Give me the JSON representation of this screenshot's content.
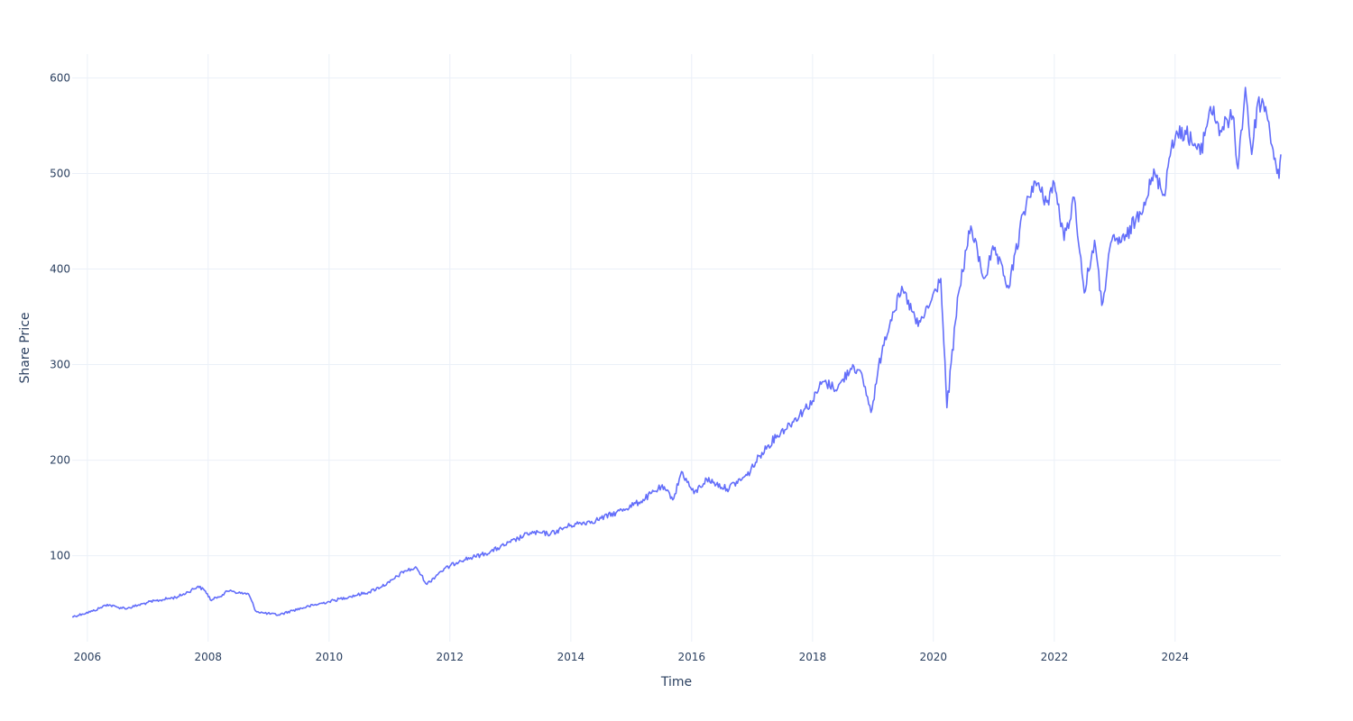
{
  "chart_data": {
    "type": "line",
    "xlabel": "Time",
    "ylabel": "Share Price",
    "x_ticks": [
      "2006",
      "2008",
      "2010",
      "2012",
      "2014",
      "2016",
      "2018",
      "2020",
      "2022",
      "2024"
    ],
    "y_ticks": [
      100,
      200,
      300,
      400,
      500,
      600
    ],
    "xlim": [
      "2005-10-01",
      "2025-10-01"
    ],
    "ylim": [
      10,
      625
    ],
    "grid": true,
    "line_color": "#636efa",
    "series": [
      {
        "values": [
          [
            "2005-10-01",
            36
          ],
          [
            "2005-12-01",
            39
          ],
          [
            "2006-02-01",
            42
          ],
          [
            "2006-03-15",
            45
          ],
          [
            "2006-05-01",
            49
          ],
          [
            "2006-07-01",
            46
          ],
          [
            "2006-09-01",
            45
          ],
          [
            "2006-11-01",
            48
          ],
          [
            "2007-01-01",
            51
          ],
          [
            "2007-04-01",
            54
          ],
          [
            "2007-07-01",
            57
          ],
          [
            "2007-09-01",
            62
          ],
          [
            "2007-11-01",
            68
          ],
          [
            "2007-12-15",
            63
          ],
          [
            "2008-01-20",
            53
          ],
          [
            "2008-03-01",
            57
          ],
          [
            "2008-05-15",
            64
          ],
          [
            "2008-07-01",
            61
          ],
          [
            "2008-09-01",
            60
          ],
          [
            "2008-10-15",
            42
          ],
          [
            "2008-12-01",
            40
          ],
          [
            "2009-03-01",
            38
          ],
          [
            "2009-06-01",
            43
          ],
          [
            "2009-09-01",
            47
          ],
          [
            "2010-01-01",
            52
          ],
          [
            "2010-05-01",
            57
          ],
          [
            "2010-09-01",
            62
          ],
          [
            "2011-01-01",
            72
          ],
          [
            "2011-04-01",
            84
          ],
          [
            "2011-06-15",
            87
          ],
          [
            "2011-08-15",
            70
          ],
          [
            "2011-11-01",
            83
          ],
          [
            "2012-03-01",
            95
          ],
          [
            "2012-06-01",
            99
          ],
          [
            "2012-09-01",
            104
          ],
          [
            "2013-01-01",
            114
          ],
          [
            "2013-05-01",
            124
          ],
          [
            "2013-09-01",
            123
          ],
          [
            "2014-01-01",
            132
          ],
          [
            "2014-06-01",
            137
          ],
          [
            "2014-10-01",
            145
          ],
          [
            "2015-03-01",
            157
          ],
          [
            "2015-07-01",
            172
          ],
          [
            "2015-09-15",
            160
          ],
          [
            "2015-11-01",
            188
          ],
          [
            "2016-01-15",
            165
          ],
          [
            "2016-04-01",
            180
          ],
          [
            "2016-08-01",
            170
          ],
          [
            "2016-12-01",
            184
          ],
          [
            "2017-03-01",
            208
          ],
          [
            "2017-06-01",
            226
          ],
          [
            "2017-09-01",
            240
          ],
          [
            "2018-01-01",
            262
          ],
          [
            "2018-03-01",
            282
          ],
          [
            "2018-06-01",
            275
          ],
          [
            "2018-09-01",
            300
          ],
          [
            "2018-11-01",
            285
          ],
          [
            "2018-12-20",
            250
          ],
          [
            "2019-03-01",
            320
          ],
          [
            "2019-05-01",
            355
          ],
          [
            "2019-07-01",
            378
          ],
          [
            "2019-10-01",
            340
          ],
          [
            "2019-12-15",
            365
          ],
          [
            "2020-02-15",
            390
          ],
          [
            "2020-03-23",
            255
          ],
          [
            "2020-06-01",
            375
          ],
          [
            "2020-08-15",
            445
          ],
          [
            "2020-11-01",
            390
          ],
          [
            "2021-01-01",
            420
          ],
          [
            "2021-04-01",
            380
          ],
          [
            "2021-07-01",
            460
          ],
          [
            "2021-09-01",
            492
          ],
          [
            "2021-11-15",
            470
          ],
          [
            "2022-01-01",
            490
          ],
          [
            "2022-03-01",
            430
          ],
          [
            "2022-05-01",
            475
          ],
          [
            "2022-07-01",
            375
          ],
          [
            "2022-09-01",
            430
          ],
          [
            "2022-10-15",
            362
          ],
          [
            "2022-12-15",
            430
          ],
          [
            "2023-03-01",
            430
          ],
          [
            "2023-06-01",
            460
          ],
          [
            "2023-09-01",
            500
          ],
          [
            "2023-10-25",
            478
          ],
          [
            "2023-12-15",
            535
          ],
          [
            "2024-03-01",
            545
          ],
          [
            "2024-06-01",
            520
          ],
          [
            "2024-08-01",
            570
          ],
          [
            "2024-10-01",
            545
          ],
          [
            "2024-12-15",
            560
          ],
          [
            "2025-01-15",
            505
          ],
          [
            "2025-03-01",
            590
          ],
          [
            "2025-04-08",
            520
          ],
          [
            "2025-05-15",
            575
          ],
          [
            "2025-07-01",
            570
          ],
          [
            "2025-08-15",
            525
          ],
          [
            "2025-09-20",
            495
          ],
          [
            "2025-10-01",
            520
          ]
        ]
      }
    ]
  }
}
